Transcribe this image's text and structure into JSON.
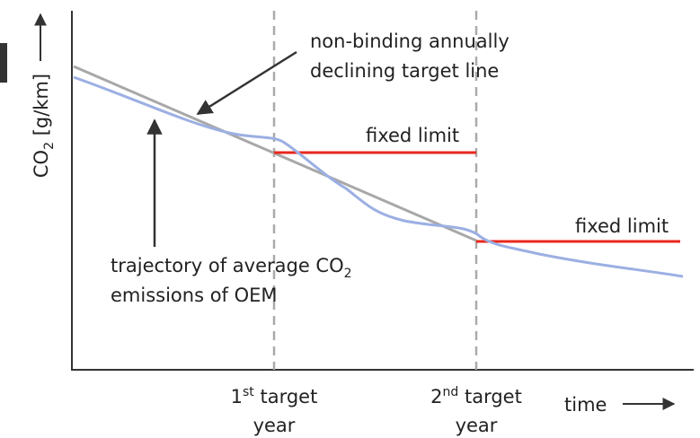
{
  "y_axis_label": {
    "text": "CO",
    "sub": "2",
    "unit": " [g/km]"
  },
  "x_axis_label": "time",
  "target_line_label": [
    "non-binding annually",
    "declining target line"
  ],
  "fixed_limit_labels": [
    "fixed limit",
    "fixed limit"
  ],
  "trajectory_label": {
    "line1": "trajectory of average CO",
    "sub": "2",
    "line2": "emissions of OEM"
  },
  "target_years": [
    {
      "num": "1",
      "sup": "st",
      "word": " target",
      "year": "year"
    },
    {
      "num": "2",
      "sup": "nd",
      "word": " target",
      "year": "year"
    }
  ]
}
